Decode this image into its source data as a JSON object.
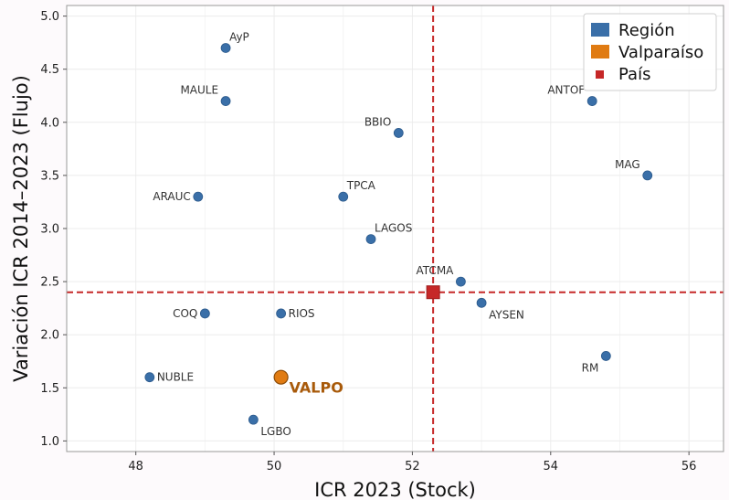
{
  "chart_data": {
    "type": "scatter",
    "xlabel": "ICR 2023 (Stock)",
    "ylabel": "Variación ICR 2014–2023 (Flujo)",
    "xlim": [
      47.0,
      56.5
    ],
    "ylim": [
      0.9,
      5.1
    ],
    "xticks": [
      "48",
      "50",
      "52",
      "54",
      "56"
    ],
    "yticks": [
      "1.0",
      "1.5",
      "2.0",
      "2.5",
      "3.0",
      "3.5",
      "4.0",
      "4.5",
      "5.0"
    ],
    "grid": true,
    "reference_lines": {
      "x": 52.3,
      "y": 2.4,
      "color": "#c62828",
      "style": "dashed"
    },
    "legend": {
      "position": "top-right",
      "entries": [
        {
          "label": "Región",
          "color": "#3a6fa8",
          "marker": "patch"
        },
        {
          "label": "Valparaíso",
          "color": "#e07b12",
          "marker": "patch"
        },
        {
          "label": "País",
          "color": "#c62828",
          "marker": "square"
        }
      ]
    },
    "series": [
      {
        "name": "Región",
        "color": "#3a6fa8",
        "points": [
          {
            "label": "AyP",
            "x": 49.3,
            "y": 4.7,
            "label_pos": "right-above"
          },
          {
            "label": "MAULE",
            "x": 49.3,
            "y": 4.2,
            "label_pos": "left-above"
          },
          {
            "label": "BBIO",
            "x": 51.8,
            "y": 3.9,
            "label_pos": "left-above"
          },
          {
            "label": "ANTOF",
            "x": 54.6,
            "y": 4.2,
            "label_pos": "left-above"
          },
          {
            "label": "MAG",
            "x": 55.4,
            "y": 3.5,
            "label_pos": "left-above"
          },
          {
            "label": "ARAUC",
            "x": 48.9,
            "y": 3.3,
            "label_pos": "left"
          },
          {
            "label": "TPCA",
            "x": 51.0,
            "y": 3.3,
            "label_pos": "right-above"
          },
          {
            "label": "LAGOS",
            "x": 51.4,
            "y": 2.9,
            "label_pos": "right-above"
          },
          {
            "label": "ATCMA",
            "x": 52.7,
            "y": 2.5,
            "label_pos": "left-above"
          },
          {
            "label": "AYSEN",
            "x": 53.0,
            "y": 2.3,
            "label_pos": "right-below"
          },
          {
            "label": "COQ",
            "x": 49.0,
            "y": 2.2,
            "label_pos": "left"
          },
          {
            "label": "RIOS",
            "x": 50.1,
            "y": 2.2,
            "label_pos": "right"
          },
          {
            "label": "RM",
            "x": 54.8,
            "y": 1.8,
            "label_pos": "left-below"
          },
          {
            "label": "NUBLE",
            "x": 48.2,
            "y": 1.6,
            "label_pos": "right"
          },
          {
            "label": "LGBO",
            "x": 49.7,
            "y": 1.2,
            "label_pos": "right-below"
          }
        ]
      },
      {
        "name": "Valparaíso",
        "color": "#e07b12",
        "points": [
          {
            "label": "VALPO",
            "x": 50.1,
            "y": 1.6,
            "label_pos": "right-below"
          }
        ]
      },
      {
        "name": "País",
        "color": "#c62828",
        "points": [
          {
            "label": "",
            "x": 52.3,
            "y": 2.4
          }
        ]
      }
    ]
  }
}
